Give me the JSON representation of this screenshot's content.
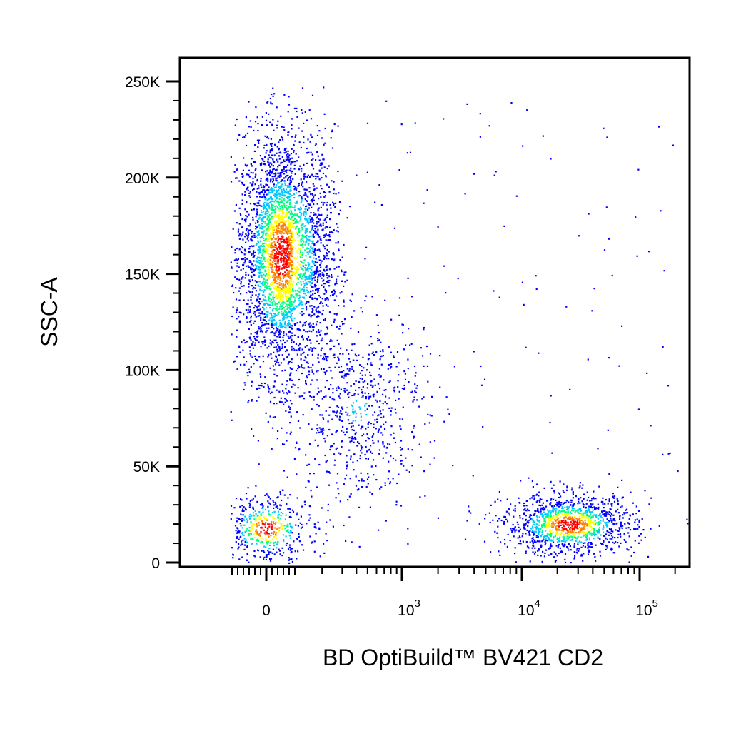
{
  "chart_data": {
    "type": "scatter",
    "subtype": "flow-cytometry-density-pseudocolor",
    "xlabel": "BD OptiBuild™ BV421 CD2",
    "ylabel": "SSC-A",
    "x_scale": "biexponential",
    "x_ticks": [
      {
        "value": 0,
        "base": "0",
        "exp": ""
      },
      {
        "value": 1000,
        "base": "10",
        "exp": "3"
      },
      {
        "value": 10000,
        "base": "10",
        "exp": "4"
      },
      {
        "value": 100000,
        "base": "10",
        "exp": "5"
      }
    ],
    "y_ticks": [
      {
        "value": 0,
        "label": "0"
      },
      {
        "value": 50000,
        "label": "50K"
      },
      {
        "value": 100000,
        "label": "100K"
      },
      {
        "value": 150000,
        "label": "150K"
      },
      {
        "value": 200000,
        "label": "200K"
      },
      {
        "value": 250000,
        "label": "250K"
      }
    ],
    "ylim": [
      0,
      250000
    ],
    "xlim": [
      -300,
      200000
    ],
    "grid": false,
    "legend": "none",
    "density_colors": [
      "#0000ff",
      "#00c8ff",
      "#00ff80",
      "#ffff00",
      "#ff8000",
      "#ff0000"
    ],
    "populations": [
      {
        "x_center": 60,
        "x_spread": 90,
        "y_center": 160000,
        "y_spread": 32000,
        "count": 3500
      },
      {
        "x_center": 0,
        "x_spread": 90,
        "y_center": 18000,
        "y_spread": 9000,
        "count": 500
      },
      {
        "x_center": 25000,
        "x_spread": 0.28,
        "y_center": 20000,
        "y_spread": 8000,
        "count": 1300
      },
      {
        "x_center": 400,
        "x_spread": 0.3,
        "y_center": 80000,
        "y_spread": 25000,
        "count": 700
      }
    ]
  }
}
